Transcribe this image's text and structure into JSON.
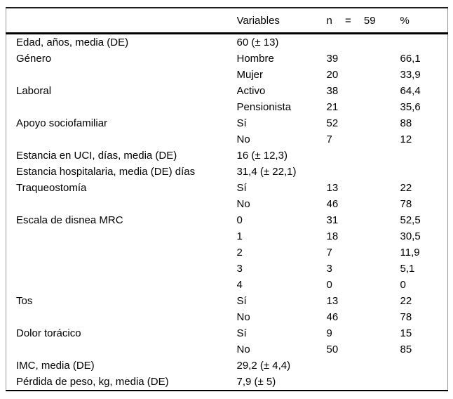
{
  "table": {
    "header": {
      "variables": "Variables",
      "n": "n = 59",
      "pct": "%"
    },
    "rows": [
      {
        "label": "Edad, años, media (DE)",
        "variable": "60 (± 13)",
        "n": "",
        "pct": ""
      },
      {
        "label": "Género",
        "variable": "Hombre",
        "n": "39",
        "pct": "66,1"
      },
      {
        "label": "",
        "variable": "Mujer",
        "n": "20",
        "pct": "33,9"
      },
      {
        "label": "Laboral",
        "variable": "Activo",
        "n": "38",
        "pct": "64,4"
      },
      {
        "label": "",
        "variable": "Pensionista",
        "n": "21",
        "pct": "35,6"
      },
      {
        "label": "Apoyo sociofamiliar",
        "variable": "Sí",
        "n": "52",
        "pct": "88"
      },
      {
        "label": "",
        "variable": "No",
        "n": "7",
        "pct": "12"
      },
      {
        "label": "Estancia en UCI, días, media (DE)",
        "variable": "16 (± 12,3)",
        "n": "",
        "pct": ""
      },
      {
        "label": "Estancia hospitalaria, media (DE) días",
        "variable": "31,4 (± 22,1)",
        "n": "",
        "pct": ""
      },
      {
        "label": "Traqueostomía",
        "variable": "Sí",
        "n": "13",
        "pct": "22"
      },
      {
        "label": "",
        "variable": "No",
        "n": "46",
        "pct": "78"
      },
      {
        "label": "Escala de disnea MRC",
        "variable": "0",
        "n": "31",
        "pct": "52,5"
      },
      {
        "label": "",
        "variable": "1",
        "n": "18",
        "pct": "30,5"
      },
      {
        "label": "",
        "variable": "2",
        "n": "7",
        "pct": "11,9"
      },
      {
        "label": "",
        "variable": "3",
        "n": "3",
        "pct": "5,1"
      },
      {
        "label": "",
        "variable": "4",
        "n": "0",
        "pct": "0"
      },
      {
        "label": "Tos",
        "variable": "Sí",
        "n": "13",
        "pct": "22"
      },
      {
        "label": "",
        "variable": "No",
        "n": "46",
        "pct": "78"
      },
      {
        "label": "Dolor torácico",
        "variable": "Sí",
        "n": "9",
        "pct": "15"
      },
      {
        "label": "",
        "variable": "No",
        "n": "50",
        "pct": "85"
      },
      {
        "label": "IMC, media (DE)",
        "variable": "29,2 (± 4,4)",
        "n": "",
        "pct": ""
      },
      {
        "label": "Pérdida de peso, kg, media (DE)",
        "variable": "7,9 (± 5)",
        "n": "",
        "pct": ""
      }
    ]
  },
  "colors": {
    "text": "#000000",
    "rule_heavy": "#000000",
    "rule_light": "#979797",
    "background": "#ffffff"
  }
}
